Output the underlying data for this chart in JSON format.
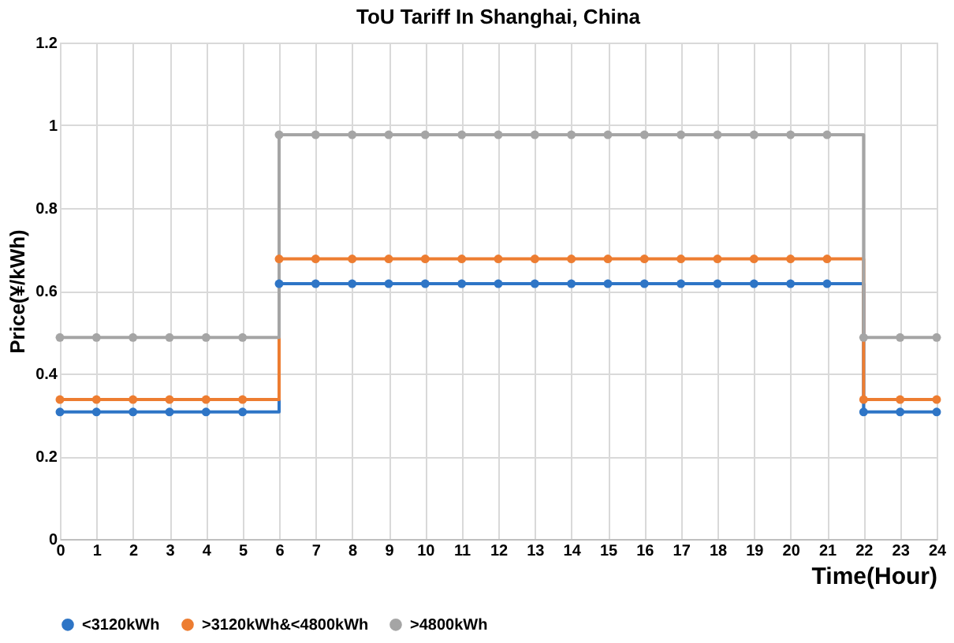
{
  "chart_data": {
    "type": "step",
    "title": "ToU Tariff In Shanghai, China",
    "xlabel": "Time(Hour)",
    "ylabel": "Price(¥/kWh)",
    "x": [
      0,
      1,
      2,
      3,
      4,
      5,
      6,
      7,
      8,
      9,
      10,
      11,
      12,
      13,
      14,
      15,
      16,
      17,
      18,
      19,
      20,
      21,
      22,
      23,
      24
    ],
    "series": [
      {
        "name": "<3120kWh",
        "color": "#2e75c6",
        "values": [
          0.307,
          0.307,
          0.307,
          0.307,
          0.307,
          0.307,
          0.617,
          0.617,
          0.617,
          0.617,
          0.617,
          0.617,
          0.617,
          0.617,
          0.617,
          0.617,
          0.617,
          0.617,
          0.617,
          0.617,
          0.617,
          0.617,
          0.307,
          0.307,
          0.307
        ]
      },
      {
        "name": ">3120kWh&<4800kWh",
        "color": "#ed7d31",
        "values": [
          0.337,
          0.337,
          0.337,
          0.337,
          0.337,
          0.337,
          0.677,
          0.677,
          0.677,
          0.677,
          0.677,
          0.677,
          0.677,
          0.677,
          0.677,
          0.677,
          0.677,
          0.677,
          0.677,
          0.677,
          0.677,
          0.677,
          0.337,
          0.337,
          0.337
        ]
      },
      {
        "name": ">4800kWh",
        "color": "#a5a5a5",
        "values": [
          0.487,
          0.487,
          0.487,
          0.487,
          0.487,
          0.487,
          0.977,
          0.977,
          0.977,
          0.977,
          0.977,
          0.977,
          0.977,
          0.977,
          0.977,
          0.977,
          0.977,
          0.977,
          0.977,
          0.977,
          0.977,
          0.977,
          0.487,
          0.487,
          0.487
        ]
      }
    ],
    "xlim": [
      0,
      24
    ],
    "xticks": [
      0,
      1,
      2,
      3,
      4,
      5,
      6,
      7,
      8,
      9,
      10,
      11,
      12,
      13,
      14,
      15,
      16,
      17,
      18,
      19,
      20,
      21,
      22,
      23,
      24
    ],
    "ylim": [
      0,
      1.2
    ],
    "yticks": [
      0,
      0.2,
      0.4,
      0.6,
      0.8,
      1,
      1.2
    ],
    "grid": true,
    "legend": "bottom",
    "marker": "circle",
    "line_style": "solid"
  }
}
